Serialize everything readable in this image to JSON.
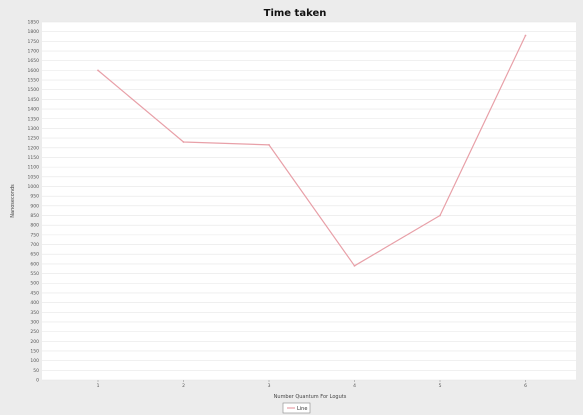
{
  "chart_data": {
    "type": "line",
    "title": "Time taken",
    "xlabel": "Number Quantum For Loguts",
    "ylabel": "Nanoseconds",
    "categories": [
      "1",
      "2",
      "3",
      "4",
      "5",
      "6"
    ],
    "series": [
      {
        "name": "Line",
        "values": [
          1600,
          1230,
          1215,
          590,
          850,
          1780
        ]
      }
    ],
    "ylim": [
      0,
      1850
    ],
    "ytick_step": 50,
    "grid": true,
    "legend": "bottom-center",
    "colors": {
      "line": "#e8a0a8",
      "background": "#ececec",
      "plot": "#ffffff",
      "grid": "#e6e6e6"
    }
  }
}
